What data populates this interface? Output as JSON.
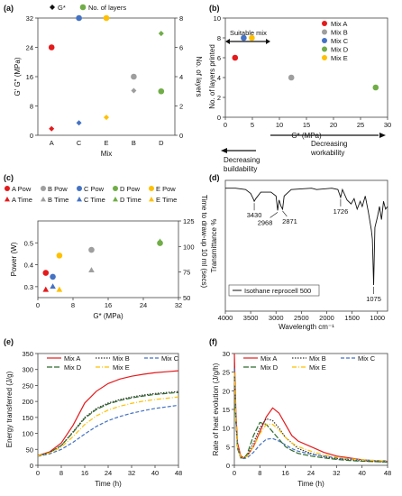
{
  "colors": {
    "A": "#e41a1c",
    "B": "#9e9e9e",
    "C": "#4472c4",
    "D": "#70ad47",
    "E": "#ffc000"
  },
  "chart_data": [
    {
      "panel": "(a)",
      "type": "scatter",
      "categories": [
        "A",
        "C",
        "E",
        "B",
        "D"
      ],
      "xlabel": "Mix",
      "ylabel": "G′ G″ (MPa)",
      "ylabel_right": "No. of layers",
      "ylim": [
        0,
        32
      ],
      "ylim_right": [
        0,
        8
      ],
      "yticks": [
        0,
        8,
        16,
        24,
        32
      ],
      "yticks_right": [
        0,
        2,
        4,
        6,
        8
      ],
      "legend": [
        "G*",
        "No. of layers"
      ],
      "series": [
        {
          "name": "G*",
          "axis": "left",
          "points": [
            {
              "cat": "A",
              "y": 1.8,
              "color": "A"
            },
            {
              "cat": "C",
              "y": 3.4,
              "color": "C"
            },
            {
              "cat": "E",
              "y": 4.9,
              "color": "E"
            },
            {
              "cat": "B",
              "y": 12.2,
              "color": "B"
            },
            {
              "cat": "D",
              "y": 27.8,
              "color": "D"
            }
          ]
        },
        {
          "name": "No. of layers",
          "axis": "right",
          "points": [
            {
              "cat": "A",
              "y": 6,
              "color": "A"
            },
            {
              "cat": "C",
              "y": 8,
              "color": "C"
            },
            {
              "cat": "E",
              "y": 8,
              "color": "E"
            },
            {
              "cat": "B",
              "y": 4,
              "color": "B"
            },
            {
              "cat": "D",
              "y": 3,
              "color": "D"
            }
          ]
        }
      ]
    },
    {
      "panel": "(b)",
      "type": "scatter",
      "xlabel": "G* (MPa)",
      "ylabel": "No. of layers printed",
      "xlim": [
        0,
        30
      ],
      "ylim": [
        0,
        10
      ],
      "xticks": [
        0,
        5,
        10,
        15,
        20,
        25,
        30
      ],
      "yticks": [
        0,
        2,
        4,
        6,
        8,
        10
      ],
      "legend": [
        "Mix A",
        "Mix B",
        "Mix C",
        "Mix D",
        "Mix E"
      ],
      "points": [
        {
          "name": "Mix A",
          "x": 1.8,
          "y": 6,
          "color": "A"
        },
        {
          "name": "Mix B",
          "x": 12.2,
          "y": 4,
          "color": "B"
        },
        {
          "name": "Mix C",
          "x": 3.4,
          "y": 8,
          "color": "C"
        },
        {
          "name": "Mix D",
          "x": 27.8,
          "y": 3,
          "color": "D"
        },
        {
          "name": "Mix E",
          "x": 4.9,
          "y": 8,
          "color": "E"
        }
      ],
      "annotations": {
        "suitable": "Suitable mix",
        "left_arrow": [
          "Decreasing",
          "buildability"
        ],
        "right_arrow": [
          "Decreasing",
          "workability"
        ]
      }
    },
    {
      "panel": "(c)",
      "type": "scatter",
      "xlabel": "G* (MPa)",
      "ylabel": "Power (W)",
      "ylabel_right": "Time to draw-up 10 ml (secs)",
      "xlim": [
        0,
        32
      ],
      "xticks": [
        0,
        8,
        16,
        24,
        32
      ],
      "ylim": [
        0.25,
        0.6
      ],
      "yticks": [
        0.3,
        0.4,
        0.5
      ],
      "ylim_right": [
        50,
        125
      ],
      "yticks_right": [
        50,
        75,
        100,
        125
      ],
      "legend": [
        "A Pow",
        "B Pow",
        "C Pow",
        "D Pow",
        "E Pow",
        "A Time",
        "B Time",
        "C Time",
        "D Time",
        "E Time"
      ],
      "series": [
        {
          "name": "Pow",
          "axis": "left",
          "points": [
            {
              "name": "A Pow",
              "x": 1.8,
              "y": 0.363,
              "color": "A"
            },
            {
              "name": "B Pow",
              "x": 12.2,
              "y": 0.468,
              "color": "B"
            },
            {
              "name": "C Pow",
              "x": 3.4,
              "y": 0.345,
              "color": "C"
            },
            {
              "name": "D Pow",
              "x": 27.8,
              "y": 0.499,
              "color": "D"
            },
            {
              "name": "E Pow",
              "x": 4.9,
              "y": 0.442,
              "color": "E"
            }
          ]
        },
        {
          "name": "Time",
          "axis": "right",
          "points": [
            {
              "name": "A Time",
              "x": 1.8,
              "y": 58,
              "color": "A"
            },
            {
              "name": "B Time",
              "x": 12.2,
              "y": 77,
              "color": "B"
            },
            {
              "name": "C Time",
              "x": 3.4,
              "y": 61,
              "color": "C"
            },
            {
              "name": "D Time",
              "x": 27.8,
              "y": 105,
              "color": "D"
            },
            {
              "name": "E Time",
              "x": 4.9,
              "y": 58,
              "color": "E"
            }
          ]
        }
      ]
    },
    {
      "panel": "(d)",
      "type": "line",
      "xlabel": "Wavelength cm⁻¹",
      "ylabel": "Transmittance %",
      "xlim": [
        4000,
        800
      ],
      "xticks": [
        4000,
        3500,
        3000,
        2500,
        2000,
        1500,
        1000
      ],
      "legend": [
        "Isothane reprocell 500"
      ],
      "x": [
        4000,
        3800,
        3600,
        3500,
        3450,
        3430,
        3400,
        3300,
        3100,
        3000,
        2968,
        2940,
        2900,
        2871,
        2840,
        2700,
        2300,
        2200,
        1900,
        1780,
        1726,
        1690,
        1600,
        1520,
        1460,
        1400,
        1340,
        1300,
        1240,
        1180,
        1120,
        1100,
        1075,
        1050,
        1000,
        960,
        920,
        880,
        840,
        800
      ],
      "y": [
        94,
        94,
        93,
        90,
        86,
        84,
        86,
        91,
        91,
        88,
        77,
        85,
        80,
        78,
        88,
        93,
        94,
        93,
        94,
        93,
        87,
        93,
        85,
        82,
        86,
        78,
        84,
        80,
        88,
        76,
        62,
        55,
        20,
        64,
        72,
        80,
        70,
        84,
        78,
        80
      ],
      "peak_labels": [
        "3430",
        "2968",
        "2871",
        "1726",
        "1075"
      ]
    },
    {
      "panel": "(e)",
      "type": "line",
      "xlabel": "Time (h)",
      "ylabel": "Energy transferred (J/g)",
      "xlim": [
        0,
        48
      ],
      "ylim": [
        0,
        350
      ],
      "xticks": [
        0,
        8,
        16,
        24,
        32,
        40,
        48
      ],
      "yticks": [
        0,
        50,
        100,
        150,
        200,
        250,
        300,
        350
      ],
      "x": [
        0,
        4,
        8,
        12,
        16,
        20,
        24,
        28,
        32,
        36,
        40,
        44,
        48
      ],
      "series": [
        {
          "name": "Mix A",
          "color": "A",
          "dash": "",
          "values": [
            30,
            42,
            70,
            125,
            195,
            232,
            256,
            270,
            279,
            285,
            290,
            293,
            296
          ]
        },
        {
          "name": "Mix B",
          "color": "#333333",
          "dash": "1.5,1.5",
          "values": [
            30,
            40,
            62,
            105,
            150,
            178,
            195,
            206,
            214,
            220,
            225,
            228,
            231
          ]
        },
        {
          "name": "Mix C",
          "color": "C",
          "dash": "4,2",
          "values": [
            28,
            36,
            50,
            72,
            98,
            122,
            140,
            153,
            163,
            171,
            178,
            183,
            188
          ]
        },
        {
          "name": "Mix D",
          "color": "#2e6b2e",
          "dash": "6,2",
          "values": [
            29,
            40,
            62,
            103,
            147,
            175,
            192,
            203,
            211,
            217,
            222,
            225,
            228
          ]
        },
        {
          "name": "Mix E",
          "color": "E",
          "dash": "5,2,1,2",
          "values": [
            29,
            39,
            57,
            90,
            128,
            155,
            173,
            185,
            194,
            201,
            206,
            210,
            214
          ]
        }
      ]
    },
    {
      "panel": "(f)",
      "type": "line",
      "xlabel": "Time (h)",
      "ylabel": "Rate of heat evolution (J/g/h)",
      "xlim": [
        0,
        48
      ],
      "ylim": [
        0,
        30
      ],
      "xticks": [
        0,
        8,
        16,
        24,
        32,
        40,
        48
      ],
      "yticks": [
        0,
        5,
        10,
        15,
        20,
        25,
        30
      ],
      "x": [
        0,
        0.5,
        1,
        2,
        3,
        4,
        6,
        8,
        10,
        12,
        14,
        16,
        18,
        20,
        24,
        28,
        32,
        36,
        40,
        44,
        48
      ],
      "series": [
        {
          "name": "Mix A",
          "color": "A",
          "dash": "",
          "values": [
            30,
            14,
            6,
            2.5,
            2,
            2.5,
            5,
            9,
            13,
            15.4,
            14,
            11,
            8,
            6.5,
            5,
            3.5,
            2.5,
            2,
            1.5,
            1.2,
            1
          ]
        },
        {
          "name": "Mix B",
          "color": "#333333",
          "dash": "1.5,1.5",
          "values": [
            25,
            12,
            5,
            2.2,
            2,
            2.6,
            6,
            10,
            12.5,
            12,
            10,
            7.5,
            6,
            4.5,
            3.2,
            2.3,
            1.8,
            1.5,
            1.2,
            1,
            0.9
          ]
        },
        {
          "name": "Mix C",
          "color": "C",
          "dash": "4,2",
          "values": [
            26,
            12,
            5,
            2,
            1.8,
            2,
            3.5,
            5.5,
            7,
            7.2,
            6.5,
            5.5,
            4.5,
            3.8,
            3,
            2.5,
            2,
            1.7,
            1.5,
            1.3,
            1.2
          ]
        },
        {
          "name": "Mix D",
          "color": "#2e6b2e",
          "dash": "6,2",
          "values": [
            24,
            11,
            4.5,
            2,
            2,
            3,
            8,
            11.5,
            11,
            9,
            7,
            5,
            4,
            3.2,
            2.5,
            2,
            1.6,
            1.3,
            1.1,
            1,
            0.9
          ]
        },
        {
          "name": "Mix E",
          "color": "E",
          "dash": "5,2,1,2",
          "values": [
            25,
            12,
            5,
            2.2,
            2,
            2.5,
            5,
            8.5,
            11,
            11,
            9.5,
            7.5,
            6,
            5,
            3.8,
            2.8,
            2.2,
            1.8,
            1.5,
            1.3,
            1.1
          ]
        }
      ]
    }
  ]
}
